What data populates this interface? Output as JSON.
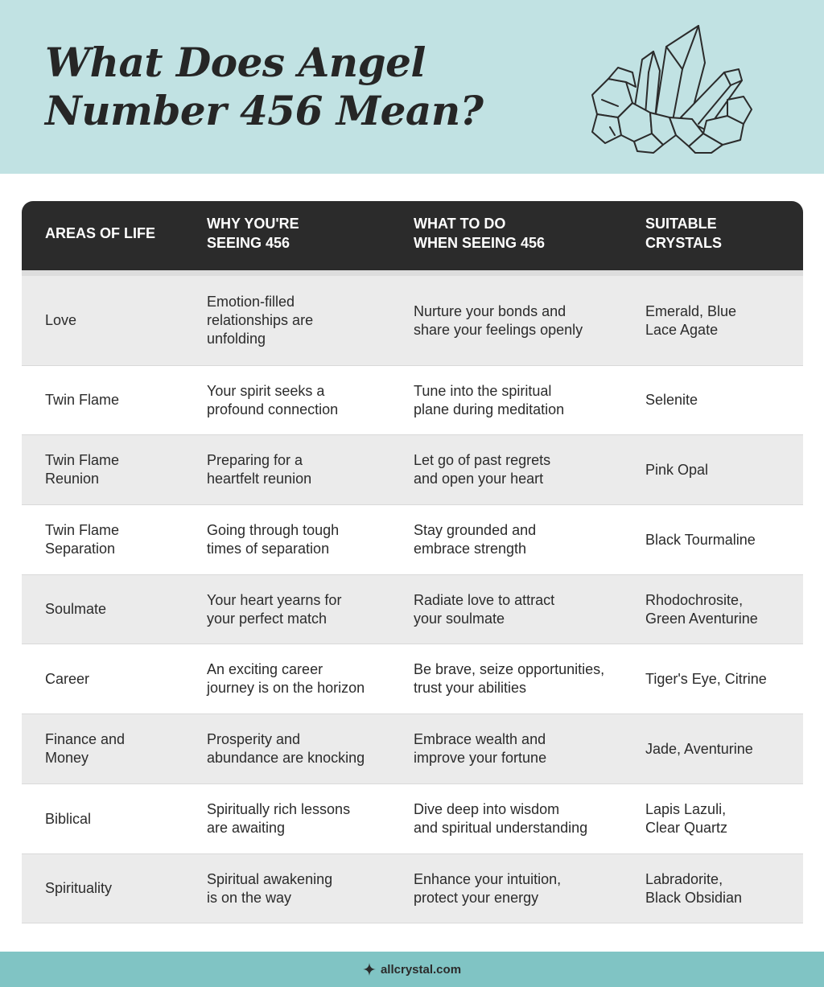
{
  "header": {
    "title": "What Does Angel Number 456 Mean?",
    "bg_color": "#c1e2e3",
    "illustration": "crystal-cluster-icon"
  },
  "table": {
    "columns": [
      "AREAS OF LIFE",
      "WHY YOU'RE\nSEEING 456",
      "WHAT TO DO\nWHEN SEEING 456",
      "SUITABLE\nCRYSTALS"
    ],
    "rows": [
      {
        "area": "Love",
        "why": "Emotion-filled\nrelationships are\nunfolding",
        "what": "Nurture your bonds and\nshare your feelings openly",
        "crystals": "Emerald, Blue\nLace Agate"
      },
      {
        "area": "Twin Flame",
        "why": "Your spirit seeks a\nprofound connection",
        "what": "Tune into the spiritual\nplane during meditation",
        "crystals": "Selenite"
      },
      {
        "area": "Twin Flame\nReunion",
        "why": "Preparing for a\nheartfelt reunion",
        "what": "Let go of past regrets\nand open your heart",
        "crystals": "Pink Opal"
      },
      {
        "area": "Twin Flame\nSeparation",
        "why": "Going through tough\ntimes of separation",
        "what": "Stay grounded and\nembrace strength",
        "crystals": "Black Tourmaline"
      },
      {
        "area": "Soulmate",
        "why": "Your heart yearns for\nyour perfect match",
        "what": "Radiate love to attract\nyour soulmate",
        "crystals": "Rhodochrosite,\nGreen Aventurine"
      },
      {
        "area": "Career",
        "why": "An exciting career\njourney is on the horizon",
        "what": "Be brave, seize opportunities,\ntrust your abilities",
        "crystals": "Tiger's Eye, Citrine"
      },
      {
        "area": "Finance and\nMoney",
        "why": "Prosperity and\nabundance are knocking",
        "what": "Embrace wealth and\nimprove your fortune",
        "crystals": "Jade, Aventurine"
      },
      {
        "area": "Biblical",
        "why": "Spiritually rich lessons\nare awaiting",
        "what": "Dive deep into wisdom\nand spiritual understanding",
        "crystals": "Lapis Lazuli,\nClear Quartz"
      },
      {
        "area": "Spirituality",
        "why": "Spiritual awakening\nis on the way",
        "what": "Enhance your intuition,\nprotect your energy",
        "crystals": "Labradorite,\nBlack Obsidian"
      }
    ]
  },
  "footer": {
    "site": "allcrystal.com",
    "icon": "sparkle-icon",
    "bg_color": "#80c4c4"
  }
}
